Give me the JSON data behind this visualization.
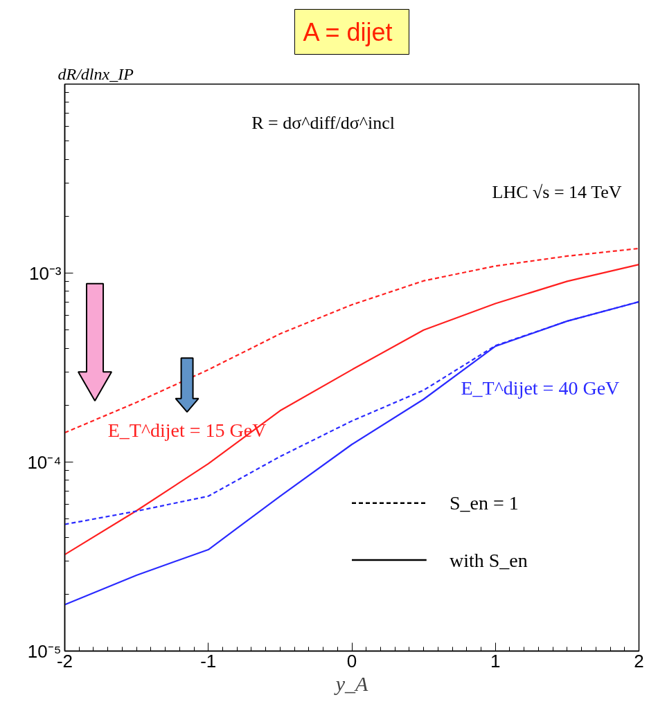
{
  "chart_data": {
    "type": "line",
    "title": "A =  dijet",
    "xlabel": "y_A",
    "ylabel": "dR/dlnx_IP",
    "x": [
      -2,
      -1.5,
      -1,
      -0.5,
      0,
      0.5,
      1,
      1.5,
      2
    ],
    "series": [
      {
        "color": "#ff2020",
        "line_style": "dashed",
        "values": [
          0.000143,
          0.000207,
          0.000308,
          0.000477,
          0.00068,
          0.00091,
          0.00109,
          0.00123,
          0.00135
        ]
      },
      {
        "color": "#ff2020",
        "line_style": "solid",
        "values": [
          3.24e-05,
          5.53e-05,
          9.8e-05,
          0.000187,
          0.000308,
          0.0005,
          0.00069,
          0.000905,
          0.00111
        ]
      },
      {
        "color": "#2a2aff",
        "line_style": "dashed",
        "values": [
          4.68e-05,
          5.5e-05,
          6.6e-05,
          0.000107,
          0.000165,
          0.00024,
          0.000413,
          0.000557,
          0.000705
        ]
      },
      {
        "color": "#2a2aff",
        "line_style": "solid",
        "values": [
          1.76e-05,
          2.52e-05,
          3.44e-05,
          6.6e-05,
          0.000124,
          0.000215,
          0.00041,
          0.000557,
          0.000705
        ]
      }
    ],
    "log": "y",
    "xlim": [
      -2,
      2
    ],
    "ylim": [
      1e-05,
      0.01
    ],
    "xticks": [
      {
        "value": -2,
        "label": "-2"
      },
      {
        "value": -1,
        "label": "-1"
      },
      0,
      1,
      2
    ],
    "yticks": [
      {
        "value": 1e-05,
        "label": "10⁻⁵"
      },
      {
        "value": 0.0001,
        "label": "10⁻⁴"
      },
      {
        "value": 0.001,
        "label": "10⁻³"
      },
      {
        "value": 0.01,
        "label": null
      }
    ],
    "grid": false,
    "marker": "none",
    "annotations": [
      "R = dσ^diff/dσ^incl",
      "LHC  √s = 14 TeV",
      "E_T^dijet = 15 GeV",
      "E_T^dijet = 40 GeV",
      "S_en = 1",
      "with S_en"
    ]
  }
}
